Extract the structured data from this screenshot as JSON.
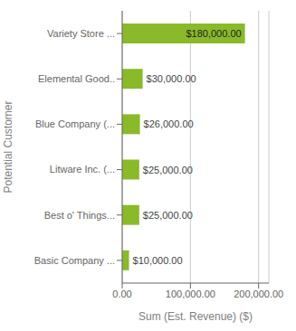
{
  "chart_data": {
    "type": "bar",
    "orientation": "horizontal",
    "xlabel": "Sum (Est. Revenue) ($)",
    "ylabel": "Potential Customer",
    "categories": [
      "Basic Company ...",
      "Best o' Things...",
      "Litware Inc. (...",
      "Blue Company (...",
      "Elemental Good..",
      "Variety Store ..."
    ],
    "values": [
      10000,
      25000,
      25000,
      26000,
      30000,
      180000
    ],
    "value_labels": [
      "$10,000.00",
      "$25,000.00",
      "$25,000.00",
      "$26,000.00",
      "$30,000.00",
      "$180,000.00"
    ],
    "data_labels": true,
    "color": "#8aba2a",
    "xlim": [
      0,
      215000
    ],
    "xticks": [
      {
        "value": 0,
        "label": "0.00"
      },
      {
        "value": 100000,
        "label": "100,000.00"
      },
      {
        "value": 200000,
        "label": "200,000.00"
      }
    ],
    "grid": true
  }
}
